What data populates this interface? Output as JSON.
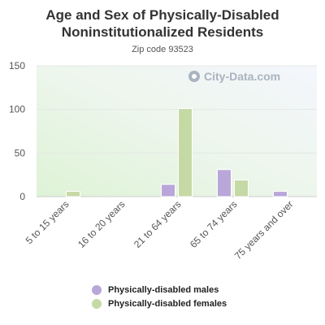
{
  "title": "Age and Sex of Physically-Disabled Noninstitutionalized Residents",
  "subtitle": "Zip code 93523",
  "watermark": "City-Data.com",
  "chart_data": {
    "type": "bar",
    "categories": [
      "5 to 15 years",
      "16 to 20 years",
      "21 to 64 years",
      "65 to 74 years",
      "75 years and over"
    ],
    "series": [
      {
        "name": "Physically-disabled males",
        "values": [
          0,
          0,
          14,
          31,
          6
        ],
        "color": "#b9a7d9"
      },
      {
        "name": "Physically-disabled females",
        "values": [
          6,
          0,
          101,
          19,
          0
        ],
        "color": "#c5d9a5"
      }
    ],
    "ylim": [
      0,
      150
    ],
    "yticks": [
      "0",
      "50",
      "100",
      "150"
    ],
    "grid": true,
    "legend": "bottom"
  }
}
